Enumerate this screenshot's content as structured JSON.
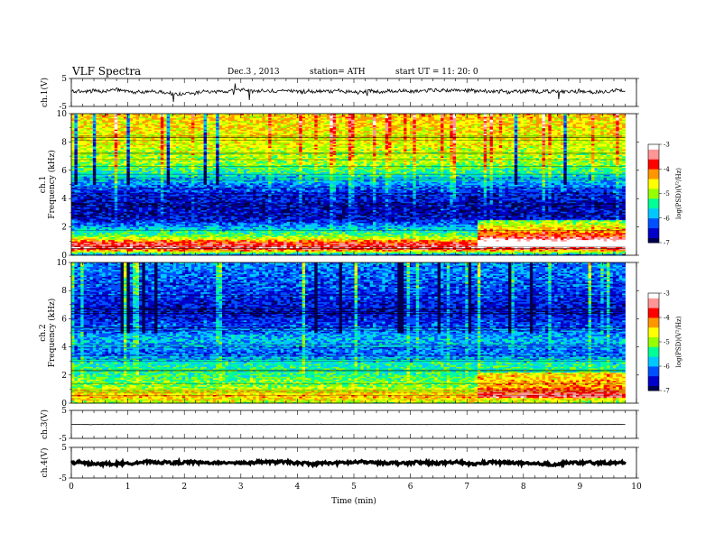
{
  "header": {
    "title": "VLF  Spectra",
    "date": "Dec.3  , 2013",
    "station": "station= ATH",
    "start": "start  UT  =    11: 20: 0"
  },
  "colors": {
    "cmap": [
      "#000050",
      "#0000c8",
      "#0050ff",
      "#00c8ff",
      "#00ff96",
      "#96ff00",
      "#ffff00",
      "#ff9600",
      "#ff0000",
      "#ff9696",
      "#ffffff"
    ]
  },
  "chart_data": {
    "type": "heatmap",
    "title": "VLF  Spectra",
    "xlabel": "Time  (min)",
    "xlim": [
      0,
      10
    ],
    "xticks": [
      "0",
      "1",
      "2",
      "3",
      "4",
      "5",
      "6",
      "7",
      "8",
      "9",
      "10"
    ],
    "data_end_min": 9.8,
    "panels": [
      {
        "name": "ch1-waveform",
        "kind": "waveform",
        "ylabel": "ch.1(V)",
        "ylim": [
          -5,
          5
        ],
        "yticks": [
          "5",
          "-5"
        ],
        "baseline": 0.3,
        "amplitude": 0.6
      },
      {
        "name": "ch1-spectrogram",
        "kind": "spectrogram",
        "ylabel_top": "ch.1",
        "ylabel": "Frequency  (kHz)",
        "ylim": [
          0,
          10
        ],
        "yticks": [
          "0",
          "2",
          "4",
          "6",
          "8",
          "10"
        ],
        "profile": [
          {
            "f": 0.0,
            "v": -6.3
          },
          {
            "f": 0.5,
            "v": -3.4
          },
          {
            "f": 0.9,
            "v": -3.8
          },
          {
            "f": 1.3,
            "v": -5.0
          },
          {
            "f": 2.0,
            "v": -5.9
          },
          {
            "f": 2.6,
            "v": -6.6
          },
          {
            "f": 3.5,
            "v": -6.7
          },
          {
            "f": 4.5,
            "v": -6.4
          },
          {
            "f": 5.5,
            "v": -5.7
          },
          {
            "f": 6.5,
            "v": -5.0
          },
          {
            "f": 8.0,
            "v": -4.7
          },
          {
            "f": 10.0,
            "v": -4.4
          }
        ],
        "shift": {
          "t": 7.2,
          "fmin": 0.6,
          "fmax": 2.5,
          "dv": 1.3
        },
        "colorbar": {
          "label": "log(PSD)(V²/Hz)",
          "ticks": [
            "-3",
            "-4",
            "-5",
            "-6",
            "-7"
          ],
          "range": [
            -7,
            -3
          ]
        }
      },
      {
        "name": "ch2-spectrogram",
        "kind": "spectrogram",
        "ylabel_top": "ch.2",
        "ylabel": "Frequency  (kHz)",
        "ylim": [
          0,
          10
        ],
        "yticks": [
          "0",
          "2",
          "4",
          "6",
          "8",
          "10"
        ],
        "profile": [
          {
            "f": 0.0,
            "v": -5.0
          },
          {
            "f": 0.5,
            "v": -4.3
          },
          {
            "f": 1.2,
            "v": -5.0
          },
          {
            "f": 2.0,
            "v": -5.3
          },
          {
            "f": 3.0,
            "v": -5.6
          },
          {
            "f": 3.5,
            "v": -6.2
          },
          {
            "f": 4.5,
            "v": -5.8
          },
          {
            "f": 5.5,
            "v": -6.3
          },
          {
            "f": 6.5,
            "v": -6.6
          },
          {
            "f": 7.5,
            "v": -6.4
          },
          {
            "f": 10.0,
            "v": -6.0
          }
        ],
        "shift": {
          "t": 7.2,
          "fmin": 0.4,
          "fmax": 2.2,
          "dv": 0.8
        },
        "colorbar": {
          "label": "log(PSD)(V²/Hz)",
          "ticks": [
            "-3",
            "-4",
            "-5",
            "-6",
            "-7"
          ],
          "range": [
            -7,
            -3
          ]
        }
      },
      {
        "name": "ch3-waveform",
        "kind": "waveform",
        "ylabel": "ch.3(V)",
        "ylim": [
          -5,
          5
        ],
        "yticks": [
          "5",
          "-5"
        ],
        "baseline": 0.0,
        "amplitude": 0.05
      },
      {
        "name": "ch4-waveform",
        "kind": "waveform",
        "ylabel": "ch.4(V)",
        "ylim": [
          -5,
          5
        ],
        "yticks": [
          "5",
          "-5"
        ],
        "baseline": 0.0,
        "amplitude": 0.4
      }
    ]
  }
}
